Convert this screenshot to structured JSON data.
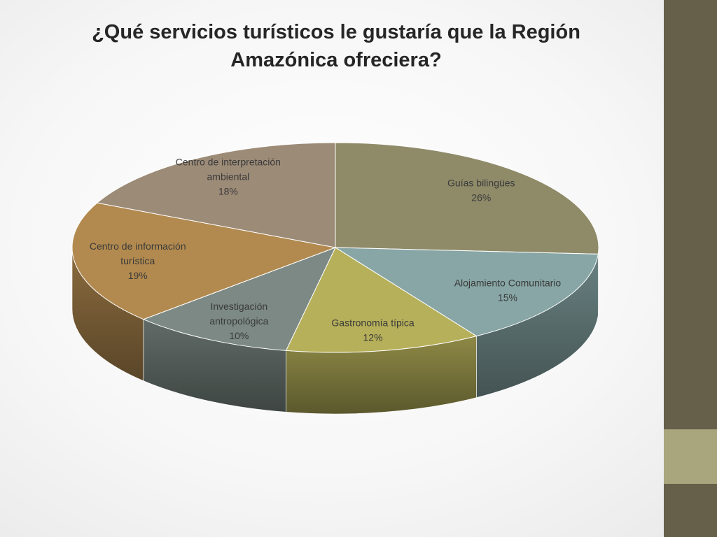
{
  "slide": {
    "title": "¿Qué servicios turísticos le gustaría que la Región\nAmazónica ofreciera?"
  },
  "theme": {
    "sidebar_color": "#665f49",
    "sidebar_accent_color": "#a9a67d"
  },
  "chart_data": {
    "type": "pie",
    "style": "3d",
    "title": "¿Qué servicios turísticos le gustaría que la Región Amazónica ofreciera?",
    "legend": "none",
    "data_labels": "category name and percent",
    "slices": [
      {
        "label_lines": [
          "Guías bilingües"
        ],
        "pct": "26%",
        "value": 26,
        "color": "#8f8b69"
      },
      {
        "label_lines": [
          "Alojamiento Comunitario"
        ],
        "pct": "15%",
        "value": 15,
        "color": "#87a6a5"
      },
      {
        "label_lines": [
          "Gastronomía típica"
        ],
        "pct": "12%",
        "value": 12,
        "color": "#b6b05a"
      },
      {
        "label_lines": [
          "Investigación",
          "antropológica"
        ],
        "pct": "10%",
        "value": 10,
        "color": "#7c8984"
      },
      {
        "label_lines": [
          "Centro de información",
          "turística"
        ],
        "pct": "19%",
        "value": 19,
        "color": "#b28a4f"
      },
      {
        "label_lines": [
          "Centro de interpretación",
          "ambiental"
        ],
        "pct": "18%",
        "value": 18,
        "color": "#9c8b77"
      }
    ]
  }
}
